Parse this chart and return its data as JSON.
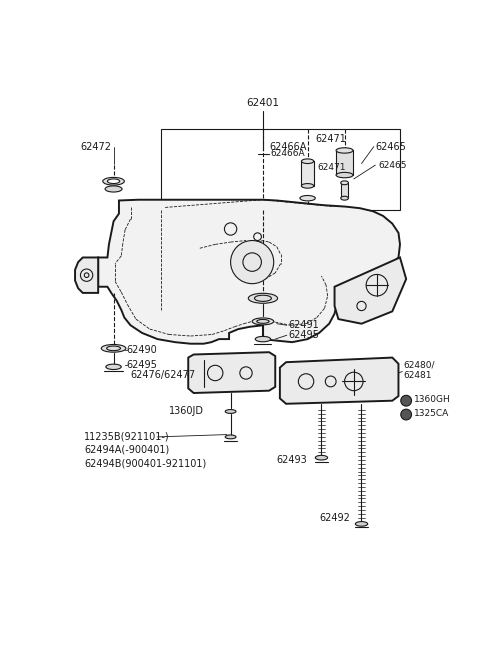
{
  "bg_color": "#ffffff",
  "line_color": "#1a1a1a",
  "lw_main": 1.4,
  "lw_thin": 0.8,
  "lw_dashed": 0.6,
  "lw_leader": 0.6,
  "fs": 6.5,
  "label_texts": {
    "62401": "62401",
    "62466A": "62466A",
    "62465": "62465",
    "62471": "62471",
    "62472": "62472",
    "62490": "62490",
    "62495l": "62495",
    "62491": "62491",
    "62495r": "62495",
    "62476": "62476/62477",
    "1360JD": "1360JD",
    "62480": "62480/\n62481",
    "1360GH": "1360GH",
    "1325CA": "1325CA",
    "62493": "62493",
    "62492": "62492",
    "11235B": "11235B(921101-)",
    "62494A": "62494A(-900401)",
    "62494B": "62494B(900401-921101)"
  }
}
